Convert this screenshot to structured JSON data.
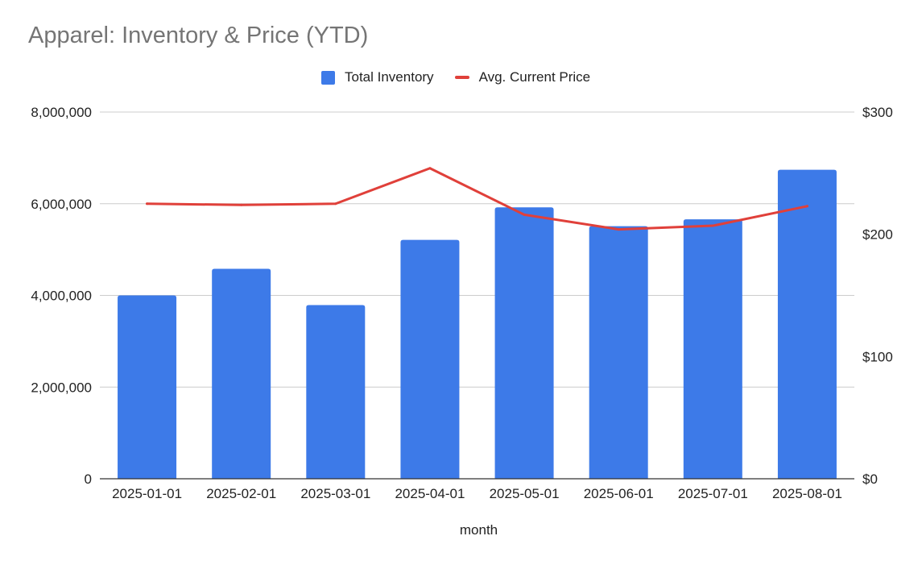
{
  "chart_data": {
    "type": "bar+line",
    "title": "Apparel: Inventory & Price (YTD)",
    "xlabel": "month",
    "categories": [
      "2025-01-01",
      "2025-02-01",
      "2025-03-01",
      "2025-04-01",
      "2025-05-01",
      "2025-06-01",
      "2025-07-01",
      "2025-08-01"
    ],
    "series": [
      {
        "name": "Total Inventory",
        "type": "bar",
        "axis": "left",
        "color": "#3d7ae8",
        "values": [
          4000000,
          4580000,
          3790000,
          5210000,
          5920000,
          5510000,
          5660000,
          6740000
        ]
      },
      {
        "name": "Avg. Current Price",
        "type": "line",
        "axis": "right",
        "color": "#e0403a",
        "values": [
          225,
          224,
          225,
          254,
          216,
          204,
          207,
          223
        ]
      }
    ],
    "left_axis": {
      "ylim": [
        0,
        8000000
      ],
      "ticks": [
        0,
        2000000,
        4000000,
        6000000,
        8000000
      ],
      "tick_labels": [
        "0",
        "2,000,000",
        "4,000,000",
        "6,000,000",
        "8,000,000"
      ]
    },
    "right_axis": {
      "ylim": [
        0,
        300
      ],
      "ticks": [
        0,
        100,
        200,
        300
      ],
      "tick_labels": [
        "$0",
        "$100",
        "$200",
        "$300"
      ]
    },
    "grid": true,
    "legend_position": "top"
  }
}
